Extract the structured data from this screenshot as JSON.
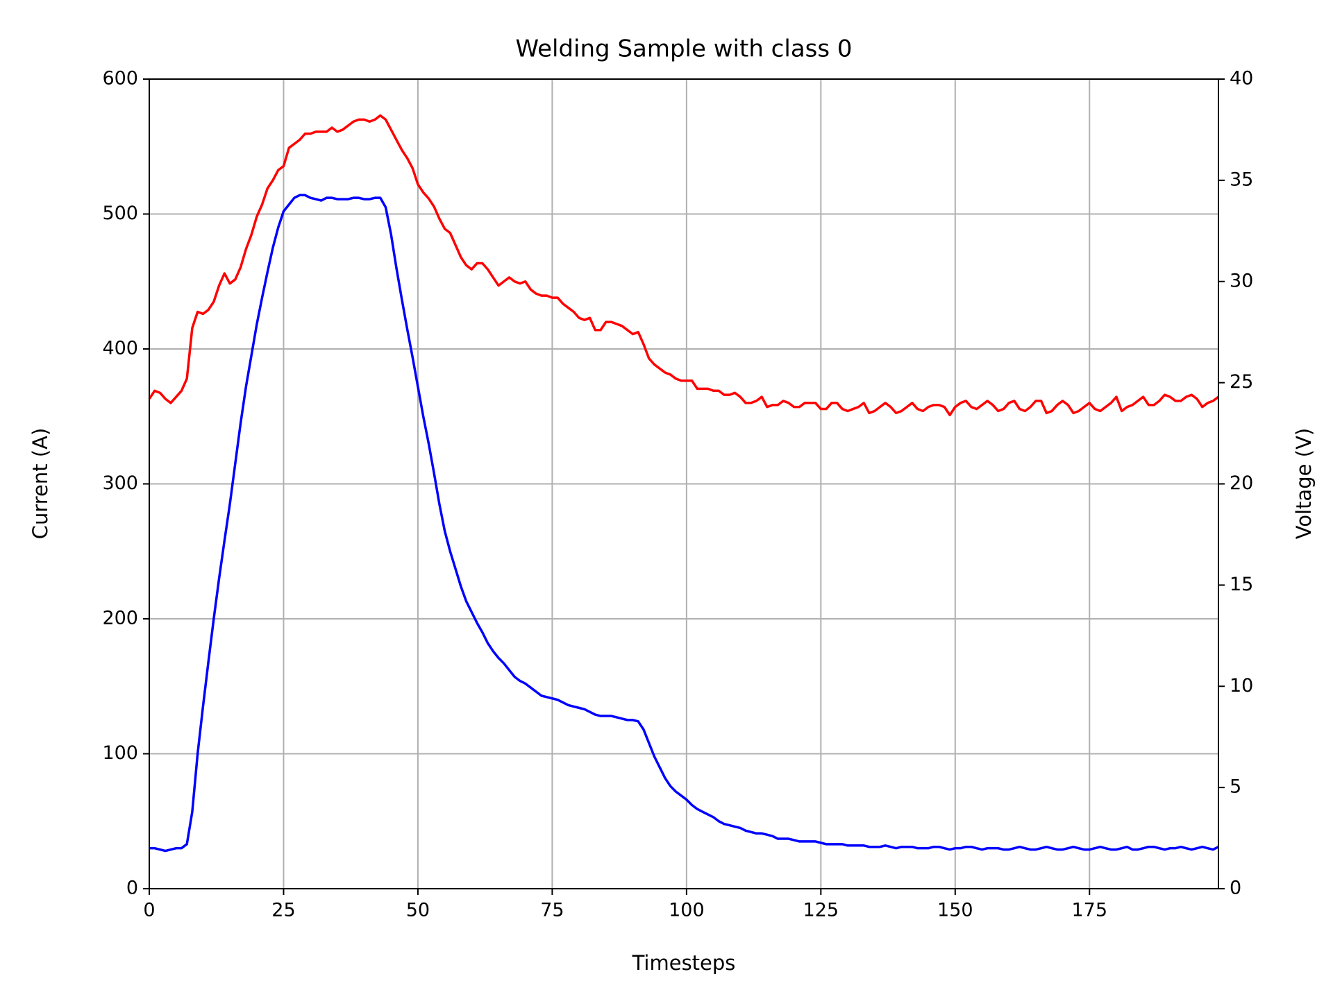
{
  "chart_data": {
    "type": "line",
    "title": "Welding Sample with class 0",
    "xlabel": "Timesteps",
    "ylabel": "Current (A)",
    "y2label": "Voltage (V)",
    "grid": true,
    "xlim": [
      0,
      199
    ],
    "xticks": [
      0,
      25,
      50,
      75,
      100,
      125,
      150,
      175
    ],
    "ylim": [
      0,
      600
    ],
    "yticks": [
      0,
      100,
      200,
      300,
      400,
      500,
      600
    ],
    "y2lim": [
      0,
      40
    ],
    "y2ticks": [
      0,
      5,
      10,
      15,
      20,
      25,
      30,
      35,
      40
    ],
    "x": [
      0,
      1,
      2,
      3,
      4,
      5,
      6,
      7,
      8,
      9,
      10,
      11,
      12,
      13,
      14,
      15,
      16,
      17,
      18,
      19,
      20,
      21,
      22,
      23,
      24,
      25,
      26,
      27,
      28,
      29,
      30,
      31,
      32,
      33,
      34,
      35,
      36,
      37,
      38,
      39,
      40,
      41,
      42,
      43,
      44,
      45,
      46,
      47,
      48,
      49,
      50,
      51,
      52,
      53,
      54,
      55,
      56,
      57,
      58,
      59,
      60,
      61,
      62,
      63,
      64,
      65,
      66,
      67,
      68,
      69,
      70,
      71,
      72,
      73,
      74,
      75,
      76,
      77,
      78,
      79,
      80,
      81,
      82,
      83,
      84,
      85,
      86,
      87,
      88,
      89,
      90,
      91,
      92,
      93,
      94,
      95,
      96,
      97,
      98,
      99,
      100,
      101,
      102,
      103,
      104,
      105,
      106,
      107,
      108,
      109,
      110,
      111,
      112,
      113,
      114,
      115,
      116,
      117,
      118,
      119,
      120,
      121,
      122,
      123,
      124,
      125,
      126,
      127,
      128,
      129,
      130,
      131,
      132,
      133,
      134,
      135,
      136,
      137,
      138,
      139,
      140,
      141,
      142,
      143,
      144,
      145,
      146,
      147,
      148,
      149,
      150,
      151,
      152,
      153,
      154,
      155,
      156,
      157,
      158,
      159,
      160,
      161,
      162,
      163,
      164,
      165,
      166,
      167,
      168,
      169,
      170,
      171,
      172,
      173,
      174,
      175,
      176,
      177,
      178,
      179,
      180,
      181,
      182,
      183,
      184,
      185,
      186,
      187,
      188,
      189,
      190,
      191,
      192,
      193,
      194,
      195,
      196,
      197,
      198,
      199
    ],
    "series": [
      {
        "color": "#0000ff",
        "axis": "y",
        "values": [
          30,
          30,
          29,
          28,
          29,
          30,
          30,
          33,
          57,
          100,
          135,
          168,
          200,
          230,
          258,
          285,
          315,
          345,
          372,
          395,
          418,
          438,
          457,
          475,
          490,
          502,
          507,
          512,
          514,
          514,
          512,
          511,
          510,
          512,
          512,
          511,
          511,
          511,
          512,
          512,
          511,
          511,
          512,
          512,
          505,
          485,
          460,
          437,
          415,
          394,
          372,
          350,
          330,
          308,
          285,
          265,
          250,
          237,
          224,
          213,
          205,
          197,
          190,
          182,
          176,
          171,
          167,
          162,
          157,
          154,
          152,
          149,
          146,
          143,
          142,
          141,
          140,
          138,
          136,
          135,
          134,
          133,
          131,
          129,
          128,
          128,
          128,
          127,
          126,
          125,
          125,
          124,
          118,
          108,
          98,
          90,
          82,
          76,
          72,
          69,
          66,
          62,
          59,
          57,
          55,
          53,
          50,
          48,
          47,
          46,
          45,
          43,
          42,
          41,
          41,
          40,
          39,
          37,
          37,
          37,
          36,
          35,
          35,
          35,
          35,
          34,
          33,
          33,
          33,
          33,
          32,
          32,
          32,
          32,
          31,
          31,
          31,
          32,
          31,
          30,
          31,
          31,
          31,
          30,
          30,
          30,
          31,
          31,
          30,
          29,
          30,
          30,
          31,
          31,
          30,
          29,
          30,
          30,
          30,
          29,
          29,
          30,
          31,
          30,
          29,
          29,
          30,
          31,
          30,
          29,
          29,
          30,
          31,
          30,
          29,
          29,
          30,
          31,
          30,
          29,
          29,
          30,
          31,
          29,
          29,
          30,
          31,
          31,
          30,
          29,
          30,
          30,
          31,
          30,
          29,
          30,
          31,
          30,
          29,
          31
        ]
      },
      {
        "color": "#ff0000",
        "axis": "y2",
        "values": [
          24.2,
          24.6,
          24.5,
          24.2,
          24.0,
          24.3,
          24.6,
          25.2,
          27.7,
          28.5,
          28.4,
          28.6,
          29.0,
          29.8,
          30.4,
          29.9,
          30.1,
          30.7,
          31.6,
          32.3,
          33.2,
          33.8,
          34.6,
          35.0,
          35.5,
          35.7,
          36.6,
          36.8,
          37.0,
          37.3,
          37.3,
          37.4,
          37.4,
          37.4,
          37.6,
          37.4,
          37.5,
          37.7,
          37.9,
          38.0,
          38.0,
          37.9,
          38.0,
          38.2,
          38.0,
          37.5,
          37.0,
          36.5,
          36.1,
          35.6,
          34.8,
          34.4,
          34.1,
          33.7,
          33.1,
          32.6,
          32.4,
          31.8,
          31.2,
          30.8,
          30.6,
          30.9,
          30.9,
          30.6,
          30.2,
          29.8,
          30.0,
          30.2,
          30.0,
          29.9,
          30.0,
          29.6,
          29.4,
          29.3,
          29.3,
          29.2,
          29.2,
          28.9,
          28.7,
          28.5,
          28.2,
          28.1,
          28.2,
          27.6,
          27.6,
          28.0,
          28.0,
          27.9,
          27.8,
          27.6,
          27.4,
          27.5,
          26.9,
          26.2,
          25.9,
          25.7,
          25.5,
          25.4,
          25.2,
          25.1,
          25.1,
          25.1,
          24.7,
          24.7,
          24.7,
          24.6,
          24.6,
          24.4,
          24.4,
          24.5,
          24.3,
          24.0,
          24.0,
          24.1,
          24.3,
          23.8,
          23.9,
          23.9,
          24.1,
          24.0,
          23.8,
          23.8,
          24.0,
          24.0,
          24.0,
          23.7,
          23.7,
          24.0,
          24.0,
          23.7,
          23.6,
          23.7,
          23.8,
          24.0,
          23.5,
          23.6,
          23.8,
          24.0,
          23.8,
          23.5,
          23.6,
          23.8,
          24.0,
          23.7,
          23.6,
          23.8,
          23.9,
          23.9,
          23.8,
          23.4,
          23.8,
          24.0,
          24.1,
          23.8,
          23.7,
          23.9,
          24.1,
          23.9,
          23.6,
          23.7,
          24.0,
          24.1,
          23.7,
          23.6,
          23.8,
          24.1,
          24.1,
          23.5,
          23.6,
          23.9,
          24.1,
          23.9,
          23.5,
          23.6,
          23.8,
          24.0,
          23.7,
          23.6,
          23.8,
          24.0,
          24.3,
          23.6,
          23.8,
          23.9,
          24.1,
          24.3,
          23.9,
          23.9,
          24.1,
          24.4,
          24.3,
          24.1,
          24.1,
          24.3,
          24.4,
          24.2,
          23.8,
          24.0,
          24.1,
          24.3
        ]
      }
    ]
  }
}
